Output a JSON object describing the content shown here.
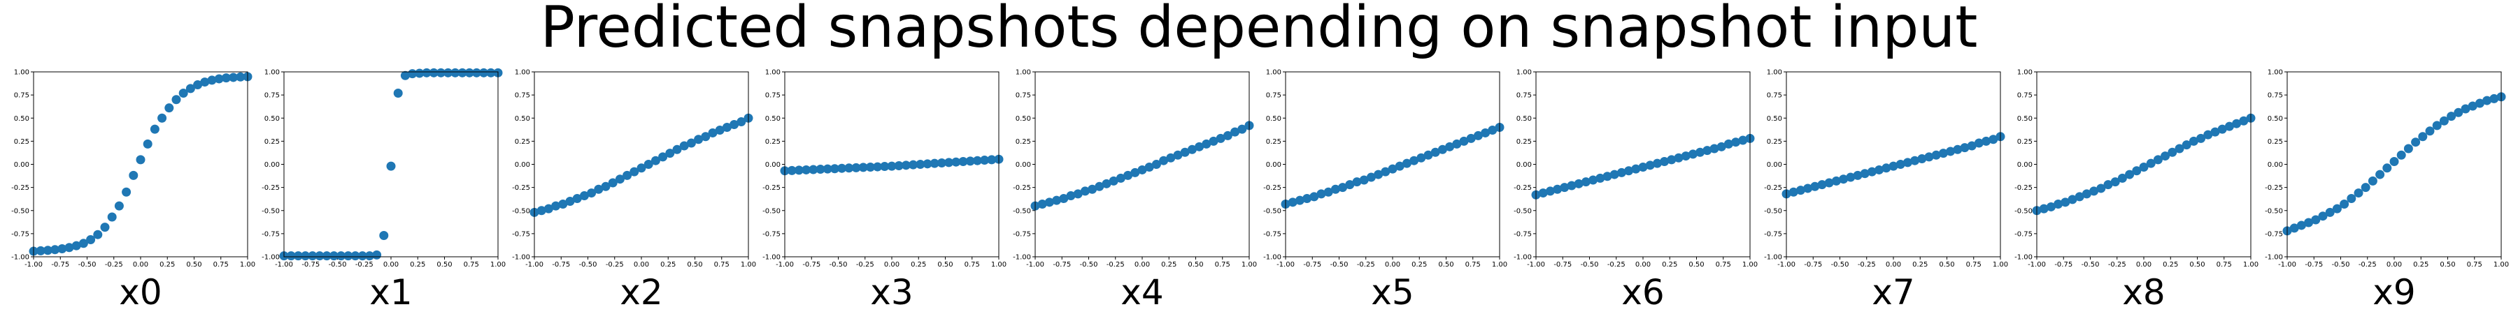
{
  "figure": {
    "title": "Predicted snapshots depending on snapshot input"
  },
  "style": {
    "marker_color": "#1f77b4",
    "axis_color": "#000000"
  },
  "chart_data": [
    {
      "type": "scatter",
      "title": "",
      "xlabel": "x0",
      "ylabel": "",
      "xlim": [
        -1,
        1
      ],
      "ylim": [
        -1,
        1
      ],
      "grid": false,
      "x": [
        -1,
        -0.9333,
        -0.8667,
        -0.8,
        -0.7333,
        -0.6667,
        -0.6,
        -0.5333,
        -0.4667,
        -0.4,
        -0.3333,
        -0.2667,
        -0.2,
        -0.1333,
        -0.0667,
        0,
        0.0667,
        0.1333,
        0.2,
        0.2667,
        0.3333,
        0.4,
        0.4667,
        0.5333,
        0.6,
        0.6667,
        0.7333,
        0.8,
        0.8667,
        0.9333,
        1
      ],
      "series": [
        {
          "values": [
            -0.94,
            -0.935,
            -0.93,
            -0.923,
            -0.913,
            -0.9,
            -0.88,
            -0.855,
            -0.815,
            -0.76,
            -0.68,
            -0.57,
            -0.45,
            -0.3,
            -0.12,
            0.05,
            0.22,
            0.38,
            0.5,
            0.61,
            0.7,
            0.77,
            0.82,
            0.86,
            0.89,
            0.91,
            0.925,
            0.935,
            0.94,
            0.945,
            0.948
          ]
        }
      ]
    },
    {
      "type": "scatter",
      "title": "",
      "xlabel": "x1",
      "ylabel": "",
      "xlim": [
        -1,
        1
      ],
      "ylim": [
        -1,
        1
      ],
      "grid": false,
      "x": [
        -1,
        -0.9333,
        -0.8667,
        -0.8,
        -0.7333,
        -0.6667,
        -0.6,
        -0.5333,
        -0.4667,
        -0.4,
        -0.3333,
        -0.2667,
        -0.2,
        -0.1333,
        -0.0667,
        0,
        0.0667,
        0.1333,
        0.2,
        0.2667,
        0.3333,
        0.4,
        0.4667,
        0.5333,
        0.6,
        0.6667,
        0.7333,
        0.8,
        0.8667,
        0.9333,
        1
      ],
      "series": [
        {
          "values": [
            -0.99,
            -0.99,
            -0.99,
            -0.99,
            -0.99,
            -0.99,
            -0.99,
            -0.99,
            -0.99,
            -0.99,
            -0.99,
            -0.99,
            -0.99,
            -0.98,
            -0.77,
            -0.02,
            0.77,
            0.96,
            0.98,
            0.985,
            0.99,
            0.99,
            0.99,
            0.99,
            0.99,
            0.99,
            0.99,
            0.99,
            0.99,
            0.99,
            0.99
          ]
        }
      ]
    },
    {
      "type": "scatter",
      "title": "",
      "xlabel": "x2",
      "ylabel": "",
      "xlim": [
        -1,
        1
      ],
      "ylim": [
        -1,
        1
      ],
      "grid": false,
      "x": [
        -1,
        -0.9333,
        -0.8667,
        -0.8,
        -0.7333,
        -0.6667,
        -0.6,
        -0.5333,
        -0.4667,
        -0.4,
        -0.3333,
        -0.2667,
        -0.2,
        -0.1333,
        -0.0667,
        0,
        0.0667,
        0.1333,
        0.2,
        0.2667,
        0.3333,
        0.4,
        0.4667,
        0.5333,
        0.6,
        0.6667,
        0.7333,
        0.8,
        0.8667,
        0.9333,
        1
      ],
      "series": [
        {
          "values": [
            -0.52,
            -0.5,
            -0.48,
            -0.45,
            -0.43,
            -0.4,
            -0.37,
            -0.34,
            -0.31,
            -0.27,
            -0.24,
            -0.2,
            -0.16,
            -0.12,
            -0.08,
            -0.04,
            0,
            0.04,
            0.08,
            0.12,
            0.16,
            0.2,
            0.23,
            0.27,
            0.3,
            0.34,
            0.37,
            0.4,
            0.43,
            0.46,
            0.5
          ]
        }
      ]
    },
    {
      "type": "scatter",
      "title": "",
      "xlabel": "x3",
      "ylabel": "",
      "xlim": [
        -1,
        1
      ],
      "ylim": [
        -1,
        1
      ],
      "grid": false,
      "x": [
        -1,
        -0.9333,
        -0.8667,
        -0.8,
        -0.7333,
        -0.6667,
        -0.6,
        -0.5333,
        -0.4667,
        -0.4,
        -0.3333,
        -0.2667,
        -0.2,
        -0.1333,
        -0.0667,
        0,
        0.0667,
        0.1333,
        0.2,
        0.2667,
        0.3333,
        0.4,
        0.4667,
        0.5333,
        0.6,
        0.6667,
        0.7333,
        0.8,
        0.8667,
        0.9333,
        1
      ],
      "series": [
        {
          "values": [
            -0.07,
            -0.067,
            -0.063,
            -0.06,
            -0.057,
            -0.053,
            -0.05,
            -0.047,
            -0.043,
            -0.04,
            -0.037,
            -0.033,
            -0.03,
            -0.027,
            -0.023,
            -0.02,
            -0.015,
            -0.01,
            -0.005,
            0,
            0.005,
            0.01,
            0.015,
            0.02,
            0.025,
            0.03,
            0.035,
            0.04,
            0.045,
            0.05,
            0.055
          ]
        }
      ]
    },
    {
      "type": "scatter",
      "title": "",
      "xlabel": "x4",
      "ylabel": "",
      "xlim": [
        -1,
        1
      ],
      "ylim": [
        -1,
        1
      ],
      "grid": false,
      "x": [
        -1,
        -0.9333,
        -0.8667,
        -0.8,
        -0.7333,
        -0.6667,
        -0.6,
        -0.5333,
        -0.4667,
        -0.4,
        -0.3333,
        -0.2667,
        -0.2,
        -0.1333,
        -0.0667,
        0,
        0.0667,
        0.1333,
        0.2,
        0.2667,
        0.3333,
        0.4,
        0.4667,
        0.5333,
        0.6,
        0.6667,
        0.7333,
        0.8,
        0.8667,
        0.9333,
        1
      ],
      "series": [
        {
          "values": [
            -0.45,
            -0.43,
            -0.41,
            -0.39,
            -0.37,
            -0.34,
            -0.32,
            -0.29,
            -0.27,
            -0.24,
            -0.21,
            -0.18,
            -0.15,
            -0.12,
            -0.09,
            -0.06,
            -0.03,
            0,
            0.04,
            0.07,
            0.1,
            0.13,
            0.16,
            0.19,
            0.22,
            0.25,
            0.28,
            0.31,
            0.35,
            0.38,
            0.42
          ]
        }
      ]
    },
    {
      "type": "scatter",
      "title": "",
      "xlabel": "x5",
      "ylabel": "",
      "xlim": [
        -1,
        1
      ],
      "ylim": [
        -1,
        1
      ],
      "grid": false,
      "x": [
        -1,
        -0.9333,
        -0.8667,
        -0.8,
        -0.7333,
        -0.6667,
        -0.6,
        -0.5333,
        -0.4667,
        -0.4,
        -0.3333,
        -0.2667,
        -0.2,
        -0.1333,
        -0.0667,
        0,
        0.0667,
        0.1333,
        0.2,
        0.2667,
        0.3333,
        0.4,
        0.4667,
        0.5333,
        0.6,
        0.6667,
        0.7333,
        0.8,
        0.8667,
        0.9333,
        1
      ],
      "series": [
        {
          "values": [
            -0.43,
            -0.41,
            -0.39,
            -0.37,
            -0.35,
            -0.32,
            -0.3,
            -0.27,
            -0.25,
            -0.22,
            -0.19,
            -0.17,
            -0.14,
            -0.11,
            -0.08,
            -0.05,
            -0.02,
            0.01,
            0.04,
            0.07,
            0.1,
            0.13,
            0.16,
            0.19,
            0.22,
            0.25,
            0.28,
            0.31,
            0.34,
            0.37,
            0.4
          ]
        }
      ]
    },
    {
      "type": "scatter",
      "title": "",
      "xlabel": "x6",
      "ylabel": "",
      "xlim": [
        -1,
        1
      ],
      "ylim": [
        -1,
        1
      ],
      "grid": false,
      "x": [
        -1,
        -0.9333,
        -0.8667,
        -0.8,
        -0.7333,
        -0.6667,
        -0.6,
        -0.5333,
        -0.4667,
        -0.4,
        -0.3333,
        -0.2667,
        -0.2,
        -0.1333,
        -0.0667,
        0,
        0.0667,
        0.1333,
        0.2,
        0.2667,
        0.3333,
        0.4,
        0.4667,
        0.5333,
        0.6,
        0.6667,
        0.7333,
        0.8,
        0.8667,
        0.9333,
        1
      ],
      "series": [
        {
          "values": [
            -0.33,
            -0.31,
            -0.29,
            -0.27,
            -0.25,
            -0.23,
            -0.21,
            -0.19,
            -0.17,
            -0.15,
            -0.13,
            -0.11,
            -0.09,
            -0.07,
            -0.05,
            -0.03,
            -0.01,
            0.01,
            0.03,
            0.05,
            0.07,
            0.09,
            0.11,
            0.13,
            0.15,
            0.17,
            0.19,
            0.22,
            0.24,
            0.26,
            0.28
          ]
        }
      ]
    },
    {
      "type": "scatter",
      "title": "",
      "xlabel": "x7",
      "ylabel": "",
      "xlim": [
        -1,
        1
      ],
      "ylim": [
        -1,
        1
      ],
      "grid": false,
      "x": [
        -1,
        -0.9333,
        -0.8667,
        -0.8,
        -0.7333,
        -0.6667,
        -0.6,
        -0.5333,
        -0.4667,
        -0.4,
        -0.3333,
        -0.2667,
        -0.2,
        -0.1333,
        -0.0667,
        0,
        0.0667,
        0.1333,
        0.2,
        0.2667,
        0.3333,
        0.4,
        0.4667,
        0.5333,
        0.6,
        0.6667,
        0.7333,
        0.8,
        0.8667,
        0.9333,
        1
      ],
      "series": [
        {
          "values": [
            -0.32,
            -0.3,
            -0.28,
            -0.26,
            -0.24,
            -0.22,
            -0.2,
            -0.18,
            -0.16,
            -0.14,
            -0.12,
            -0.1,
            -0.08,
            -0.06,
            -0.04,
            -0.02,
            0,
            0.02,
            0.04,
            0.06,
            0.08,
            0.1,
            0.12,
            0.14,
            0.16,
            0.18,
            0.2,
            0.23,
            0.25,
            0.27,
            0.3
          ]
        }
      ]
    },
    {
      "type": "scatter",
      "title": "",
      "xlabel": "x8",
      "ylabel": "",
      "xlim": [
        -1,
        1
      ],
      "ylim": [
        -1,
        1
      ],
      "grid": false,
      "x": [
        -1,
        -0.9333,
        -0.8667,
        -0.8,
        -0.7333,
        -0.6667,
        -0.6,
        -0.5333,
        -0.4667,
        -0.4,
        -0.3333,
        -0.2667,
        -0.2,
        -0.1333,
        -0.0667,
        0,
        0.0667,
        0.1333,
        0.2,
        0.2667,
        0.3333,
        0.4,
        0.4667,
        0.5333,
        0.6,
        0.6667,
        0.7333,
        0.8,
        0.8667,
        0.9333,
        1
      ],
      "series": [
        {
          "values": [
            -0.5,
            -0.48,
            -0.46,
            -0.43,
            -0.41,
            -0.38,
            -0.35,
            -0.32,
            -0.29,
            -0.26,
            -0.22,
            -0.19,
            -0.15,
            -0.11,
            -0.07,
            -0.03,
            0.01,
            0.05,
            0.09,
            0.13,
            0.17,
            0.21,
            0.25,
            0.28,
            0.32,
            0.35,
            0.38,
            0.41,
            0.44,
            0.47,
            0.5
          ]
        }
      ]
    },
    {
      "type": "scatter",
      "title": "",
      "xlabel": "x9",
      "ylabel": "",
      "xlim": [
        -1,
        1
      ],
      "ylim": [
        -1,
        1
      ],
      "grid": false,
      "x": [
        -1,
        -0.9333,
        -0.8667,
        -0.8,
        -0.7333,
        -0.6667,
        -0.6,
        -0.5333,
        -0.4667,
        -0.4,
        -0.3333,
        -0.2667,
        -0.2,
        -0.1333,
        -0.0667,
        0,
        0.0667,
        0.1333,
        0.2,
        0.2667,
        0.3333,
        0.4,
        0.4667,
        0.5333,
        0.6,
        0.6667,
        0.7333,
        0.8,
        0.8667,
        0.9333,
        1
      ],
      "series": [
        {
          "values": [
            -0.72,
            -0.69,
            -0.66,
            -0.63,
            -0.6,
            -0.56,
            -0.52,
            -0.48,
            -0.43,
            -0.37,
            -0.31,
            -0.25,
            -0.18,
            -0.11,
            -0.04,
            0.03,
            0.1,
            0.17,
            0.24,
            0.3,
            0.36,
            0.42,
            0.47,
            0.52,
            0.56,
            0.6,
            0.63,
            0.66,
            0.69,
            0.71,
            0.73
          ]
        }
      ]
    }
  ]
}
